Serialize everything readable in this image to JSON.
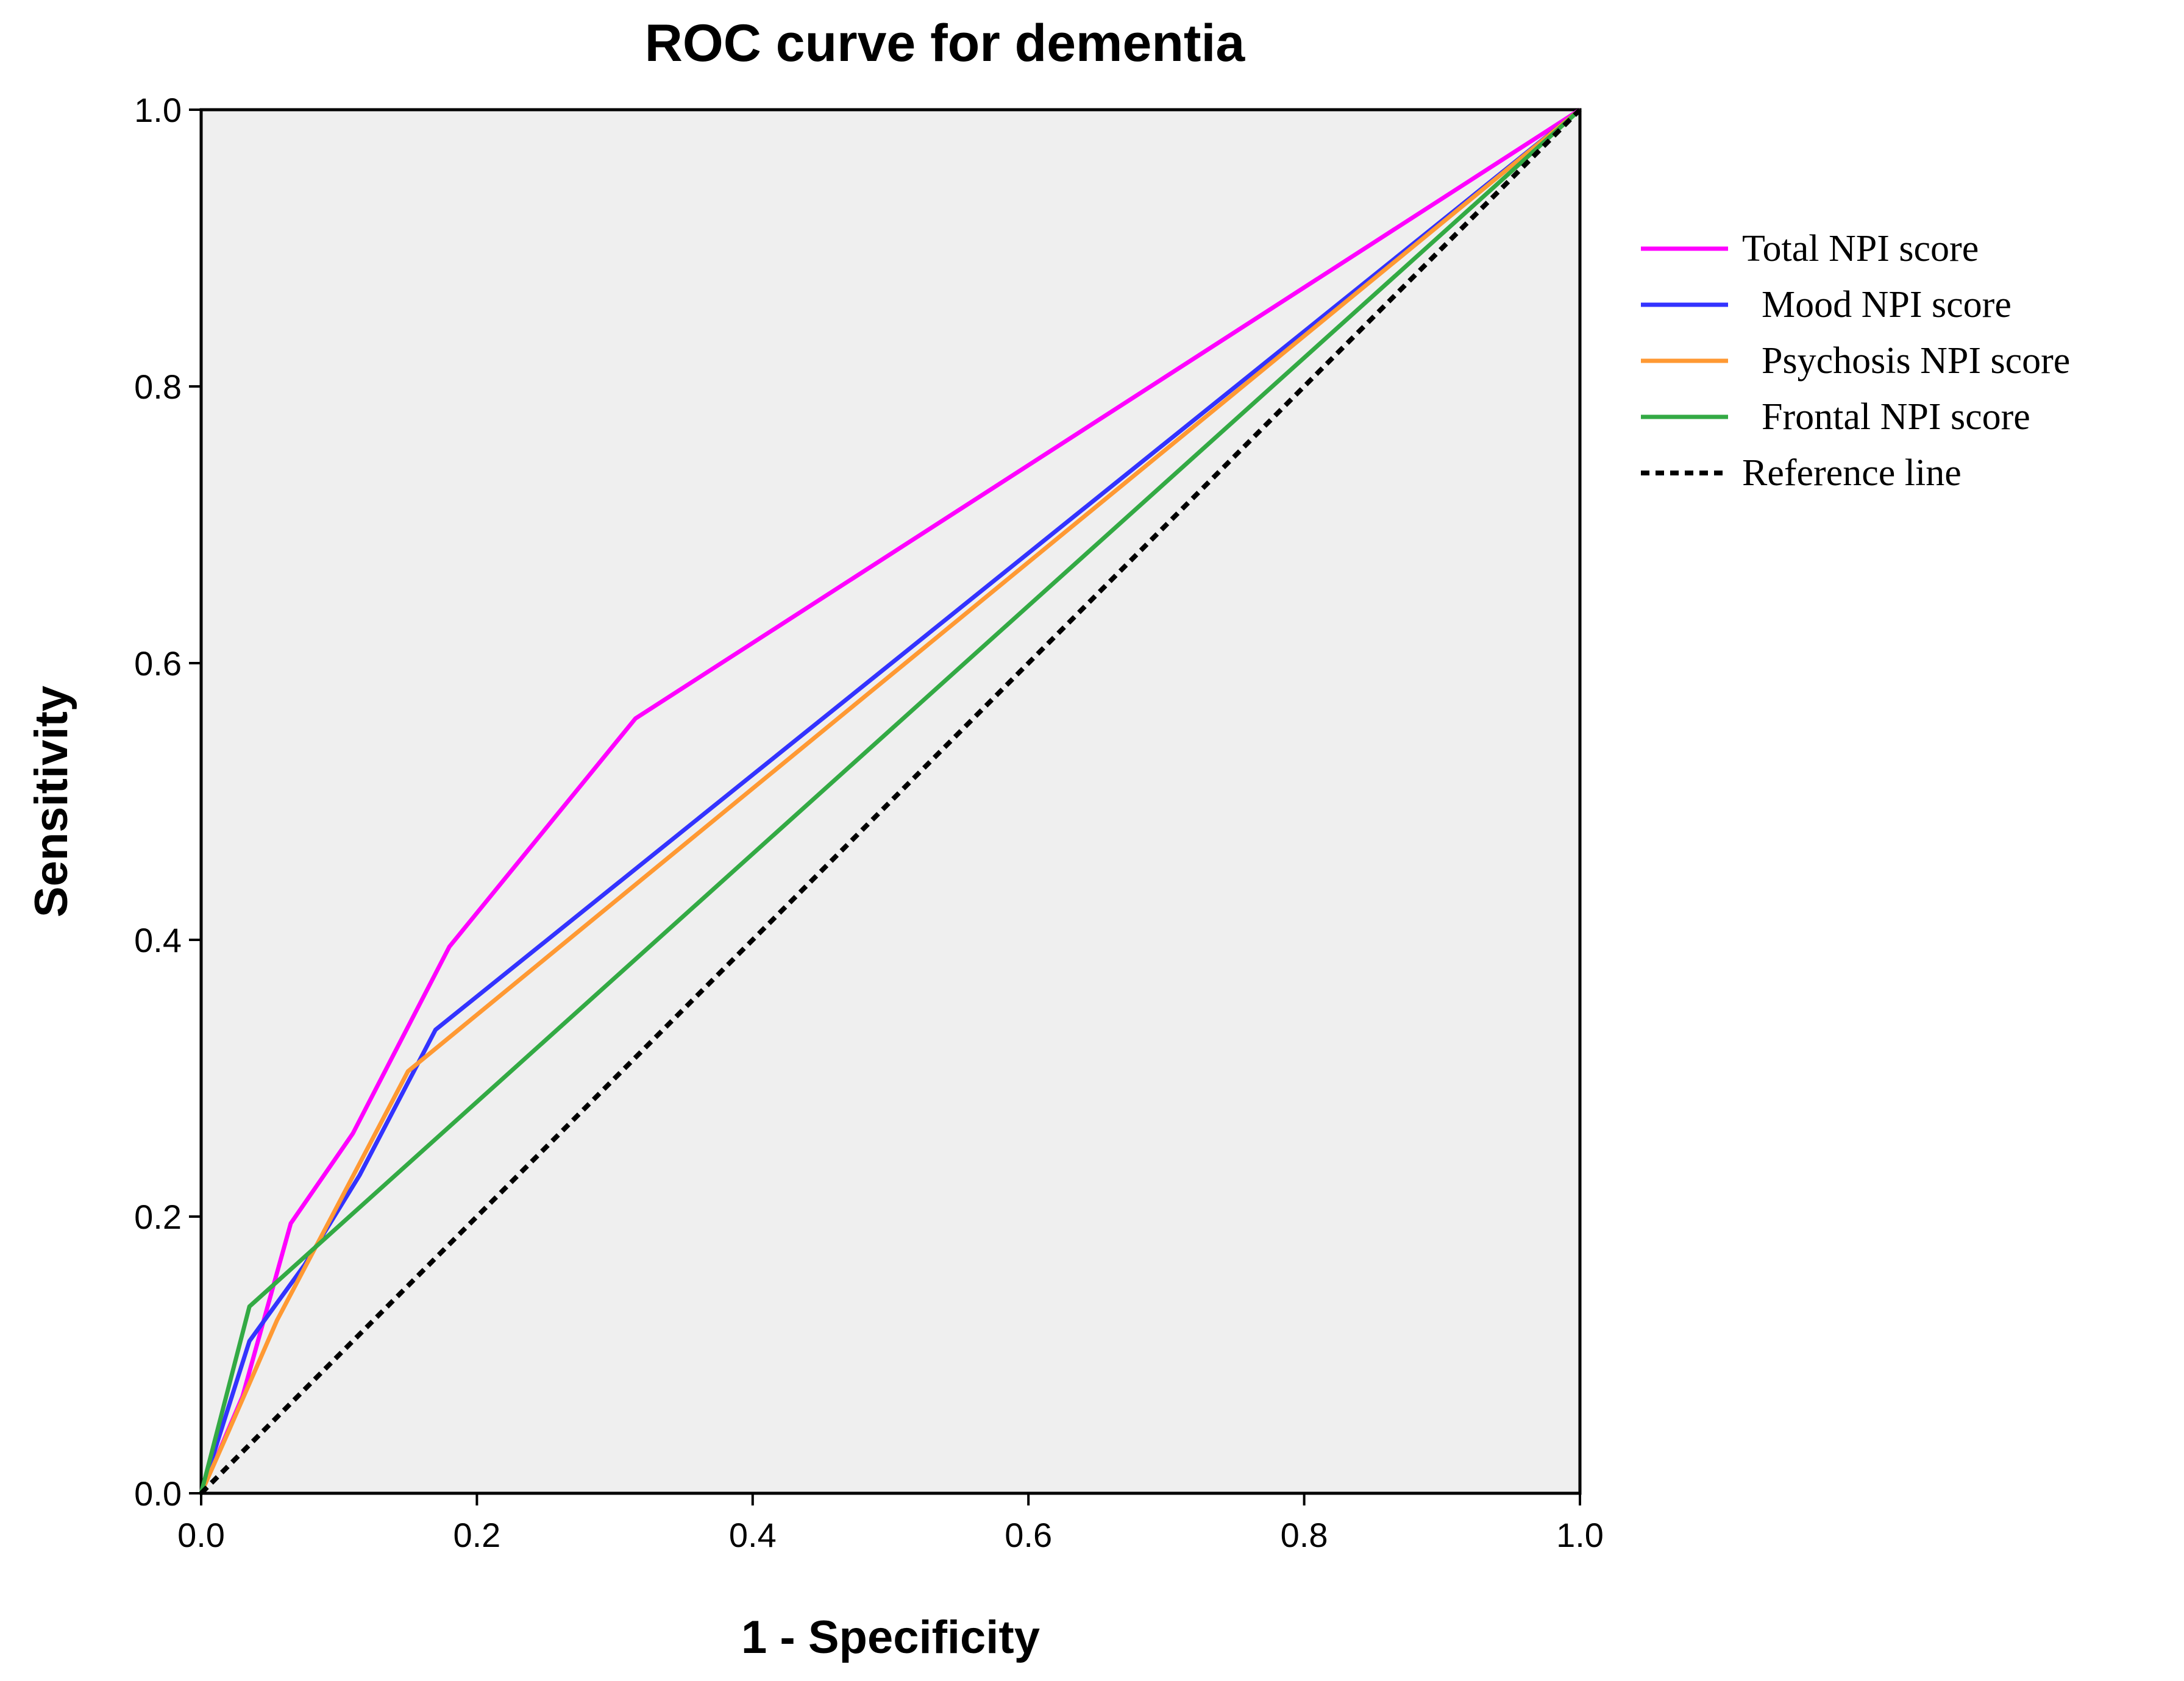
{
  "chart_data": {
    "type": "line",
    "title": "ROC curve for dementia",
    "xlabel": "1 - Specificity",
    "ylabel": "Sensitivity",
    "xlim": [
      0.0,
      1.0
    ],
    "ylim": [
      0.0,
      1.0
    ],
    "xticks": [
      "0.0",
      "0.2",
      "0.4",
      "0.6",
      "0.8",
      "1.0"
    ],
    "yticks": [
      "0.0",
      "0.2",
      "0.4",
      "0.6",
      "0.8",
      "1.0"
    ],
    "grid": false,
    "legend_position": "right",
    "plot_background": "#efefef",
    "series": [
      {
        "name": "Total NPI score",
        "color": "#ff00ff",
        "style": "solid",
        "x": [
          0.0,
          0.03,
          0.065,
          0.11,
          0.18,
          0.315,
          1.0
        ],
        "y": [
          0.0,
          0.07,
          0.195,
          0.26,
          0.395,
          0.56,
          1.0
        ]
      },
      {
        "name": "Mood NPI score",
        "color": "#3333ff",
        "style": "solid",
        "x": [
          0.0,
          0.035,
          0.075,
          0.115,
          0.17,
          1.0
        ],
        "y": [
          0.0,
          0.11,
          0.165,
          0.23,
          0.335,
          1.0
        ]
      },
      {
        "name": "Psychosis NPI score",
        "color": "#ff9933",
        "style": "solid",
        "x": [
          0.0,
          0.02,
          0.055,
          0.1,
          0.15,
          1.0
        ],
        "y": [
          0.0,
          0.045,
          0.125,
          0.21,
          0.305,
          1.0
        ]
      },
      {
        "name": "Frontal NPI score",
        "color": "#33aa44",
        "style": "solid",
        "x": [
          0.0,
          0.035,
          1.0
        ],
        "y": [
          0.0,
          0.135,
          1.0
        ]
      },
      {
        "name": "Reference line",
        "color": "#000000",
        "style": "dashed",
        "x": [
          0.0,
          1.0
        ],
        "y": [
          0.0,
          1.0
        ]
      }
    ]
  }
}
